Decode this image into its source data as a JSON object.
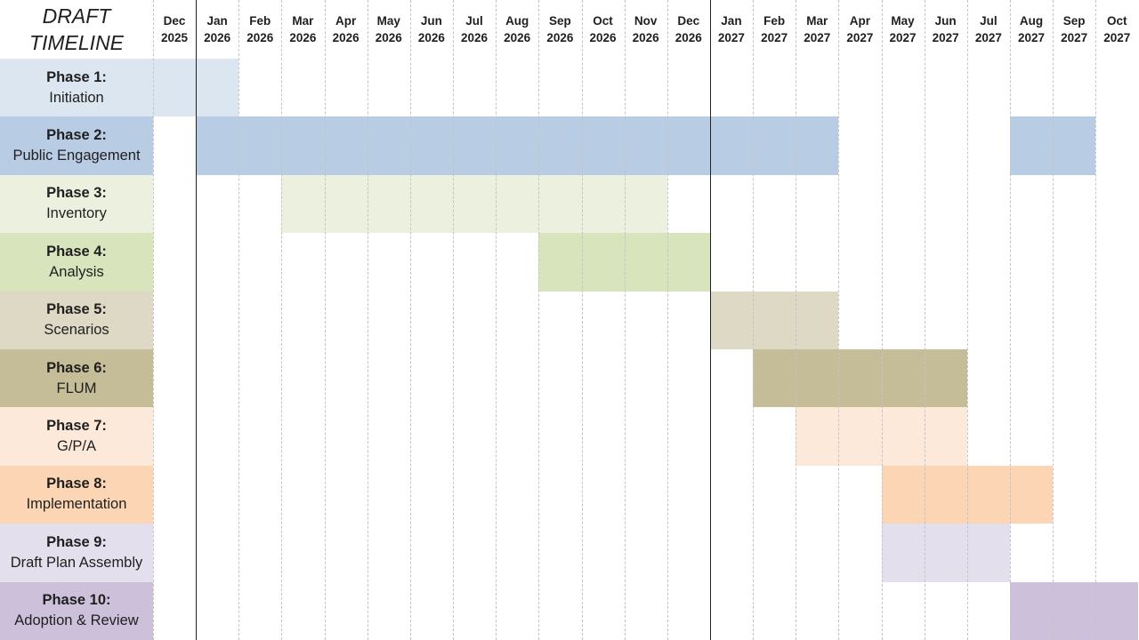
{
  "chart_data": {
    "type": "gantt",
    "title_lines": [
      "DRAFT",
      "TIMELINE"
    ],
    "months": [
      {
        "month": "Dec",
        "year": "2025"
      },
      {
        "month": "Jan",
        "year": "2026"
      },
      {
        "month": "Feb",
        "year": "2026"
      },
      {
        "month": "Mar",
        "year": "2026"
      },
      {
        "month": "Apr",
        "year": "2026"
      },
      {
        "month": "May",
        "year": "2026"
      },
      {
        "month": "Jun",
        "year": "2026"
      },
      {
        "month": "Jul",
        "year": "2026"
      },
      {
        "month": "Aug",
        "year": "2026"
      },
      {
        "month": "Sep",
        "year": "2026"
      },
      {
        "month": "Oct",
        "year": "2026"
      },
      {
        "month": "Nov",
        "year": "2026"
      },
      {
        "month": "Dec",
        "year": "2026"
      },
      {
        "month": "Jan",
        "year": "2027"
      },
      {
        "month": "Feb",
        "year": "2027"
      },
      {
        "month": "Mar",
        "year": "2027"
      },
      {
        "month": "Apr",
        "year": "2027"
      },
      {
        "month": "May",
        "year": "2027"
      },
      {
        "month": "Jun",
        "year": "2027"
      },
      {
        "month": "Jul",
        "year": "2027"
      },
      {
        "month": "Aug",
        "year": "2027"
      },
      {
        "month": "Sep",
        "year": "2027"
      },
      {
        "month": "Oct",
        "year": "2027"
      }
    ],
    "year_dividers_after": [
      "Dec 2025",
      "Dec 2026"
    ],
    "phases": [
      {
        "phase": "Phase 1:",
        "name": "Initiation",
        "color": "#dce6f1",
        "label_color": "#dce6f1",
        "spans": [
          [
            "Dec 2025",
            "Jan 2026"
          ]
        ]
      },
      {
        "phase": "Phase 2:",
        "name": "Public Engagement",
        "color": "#b8cce4",
        "label_color": "#b8cce4",
        "spans": [
          [
            "Jan 2026",
            "Mar 2027"
          ],
          [
            "Aug 2027",
            "Sep 2027"
          ]
        ]
      },
      {
        "phase": "Phase 3:",
        "name": "Inventory",
        "color": "#ebf1de",
        "label_color": "#ebf1de",
        "spans": [
          [
            "Mar 2026",
            "Nov 2026"
          ]
        ]
      },
      {
        "phase": "Phase 4:",
        "name": "Analysis",
        "color": "#d8e4bc",
        "label_color": "#d8e4bc",
        "spans": [
          [
            "Sep 2026",
            "Dec 2026"
          ]
        ]
      },
      {
        "phase": "Phase 5:",
        "name": "Scenarios",
        "color": "#ddd9c4",
        "label_color": "#ddd9c4",
        "spans": [
          [
            "Jan 2027",
            "Mar 2027"
          ]
        ]
      },
      {
        "phase": "Phase 6:",
        "name": "FLUM",
        "color": "#c4bd97",
        "label_color": "#c4bd97",
        "spans": [
          [
            "Feb 2027",
            "Jun 2027"
          ]
        ]
      },
      {
        "phase": "Phase 7:",
        "name": "G/P/A",
        "color": "#fde9d9",
        "label_color": "#fde9d9",
        "spans": [
          [
            "Mar 2027",
            "Jun 2027"
          ]
        ]
      },
      {
        "phase": "Phase 8:",
        "name": "Implementation",
        "color": "#fcd5b4",
        "label_color": "#fcd5b4",
        "spans": [
          [
            "May 2027",
            "Aug 2027"
          ]
        ]
      },
      {
        "phase": "Phase 9:",
        "name": "Draft Plan Assembly",
        "color": "#e4dfec",
        "label_color": "#e4dfec",
        "spans": [
          [
            "May 2027",
            "Jul 2027"
          ]
        ]
      },
      {
        "phase": "Phase 10:",
        "name": "Adoption & Review",
        "color": "#ccc0da",
        "label_color": "#ccc0da",
        "spans": [
          [
            "Aug 2027",
            "Oct 2027"
          ]
        ]
      }
    ],
    "grid": "dashed vertical month lines"
  }
}
